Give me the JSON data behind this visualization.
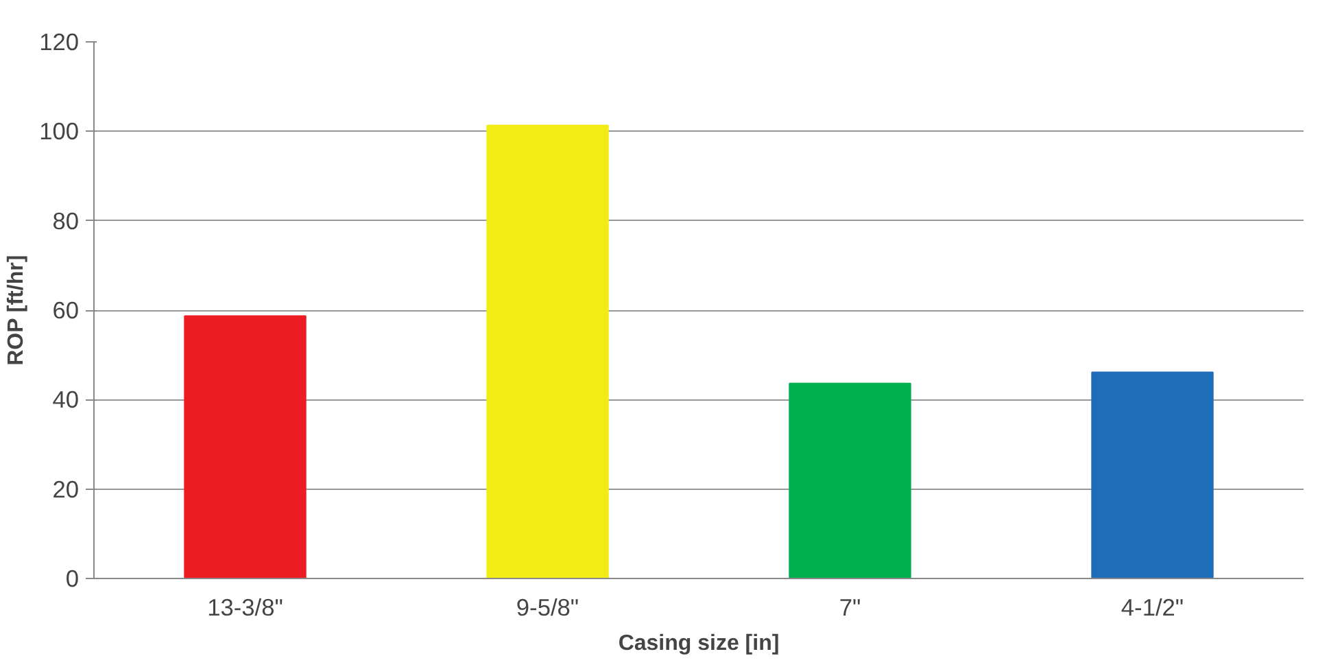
{
  "chart_data": {
    "type": "bar",
    "xlabel": "Casing size [in]",
    "ylabel": "ROP [ft/hr]",
    "categories": [
      "13-3/8\"",
      "9-5/8\"",
      "7\"",
      "4-1/2\""
    ],
    "values": [
      58.7,
      101.3,
      43.6,
      46.1
    ],
    "colors": [
      "#ed1c24",
      "#f2eb14",
      "#00b050",
      "#1f6db8"
    ],
    "ylim": [
      0,
      120
    ],
    "yticks": [
      0,
      20,
      40,
      60,
      80,
      100,
      120
    ],
    "grid": "y"
  }
}
